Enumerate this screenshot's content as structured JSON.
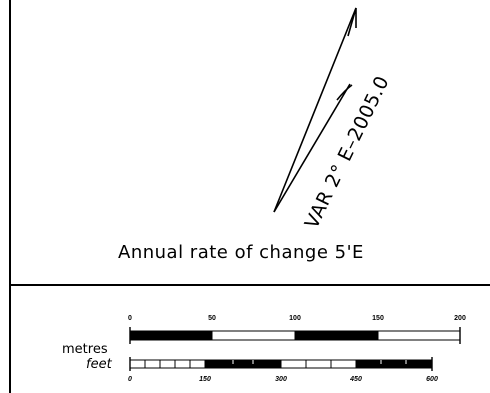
{
  "declination": {
    "variation_label": "VAR 2° E–2005.0",
    "annual_change_label": "Annual rate of change 5'E"
  },
  "scale_bar": {
    "metres_label": "metres",
    "feet_label": "feet",
    "metres_ticks": [
      "0",
      "50",
      "100",
      "150",
      "200"
    ],
    "feet_ticks": [
      "0",
      "150",
      "300",
      "450",
      "600"
    ],
    "metres_max": 200,
    "feet_max": 600
  },
  "colors": {
    "ink": "#000000",
    "paper": "#ffffff"
  }
}
